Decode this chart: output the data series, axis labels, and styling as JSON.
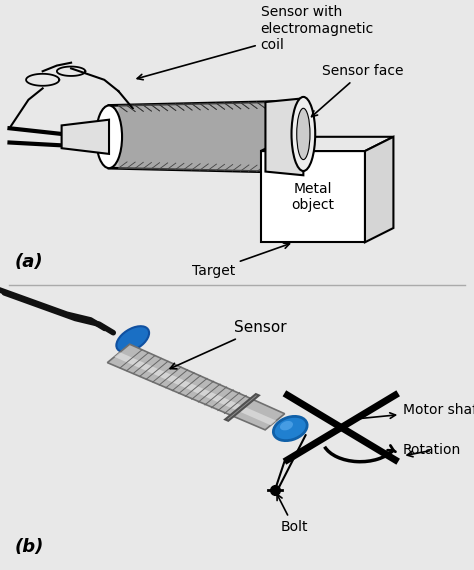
{
  "bg_color": "#e8e8e8",
  "panel_a_bg": "#e8e8e8",
  "panel_b_bg": "white",
  "text_color": "#111111",
  "label_a": "(a)",
  "label_b": "(b)",
  "ann_a": {
    "sensor_coil": "Sensor with\nelectromagnetic\ncoil",
    "sensor_face": "Sensor face",
    "metal_object": "Metal\nobject",
    "target": "Target"
  },
  "ann_b": {
    "sensor": "Sensor",
    "motor_shaft": "Motor shaft",
    "rotation": "Rotation",
    "bolt": "Bolt"
  },
  "font_size_label": 13,
  "font_size_ann": 10,
  "divider_color": "#aaaaaa"
}
